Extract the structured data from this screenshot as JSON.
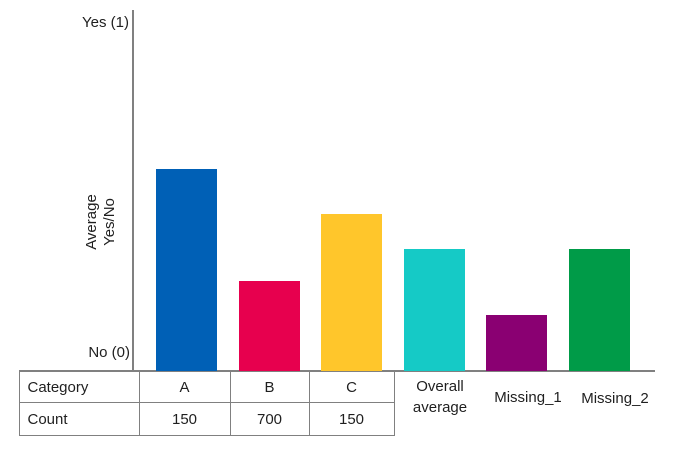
{
  "chart_data": {
    "type": "bar",
    "title": "",
    "ylabel": "Average\nYes/No",
    "y_axis_labels": {
      "top": "Yes (1)",
      "bottom": "No (0)"
    },
    "ylim": [
      0,
      1
    ],
    "grid": false,
    "legend": "none",
    "categories": [
      "A",
      "B",
      "C",
      "Overall average",
      "Missing_1",
      "Missing_2"
    ],
    "values": [
      0.58,
      0.26,
      0.45,
      0.35,
      0.16,
      0.35
    ],
    "colors": [
      "#0060B6",
      "#E7004E",
      "#FFC62B",
      "#15CAC6",
      "#8A0072",
      "#009B48"
    ],
    "axis_color": "#808080"
  },
  "table": {
    "row_headers": [
      "Category",
      "Count"
    ],
    "category_cells": [
      "A",
      "B",
      "C"
    ],
    "count_cells": [
      "150",
      "700",
      "150"
    ]
  }
}
